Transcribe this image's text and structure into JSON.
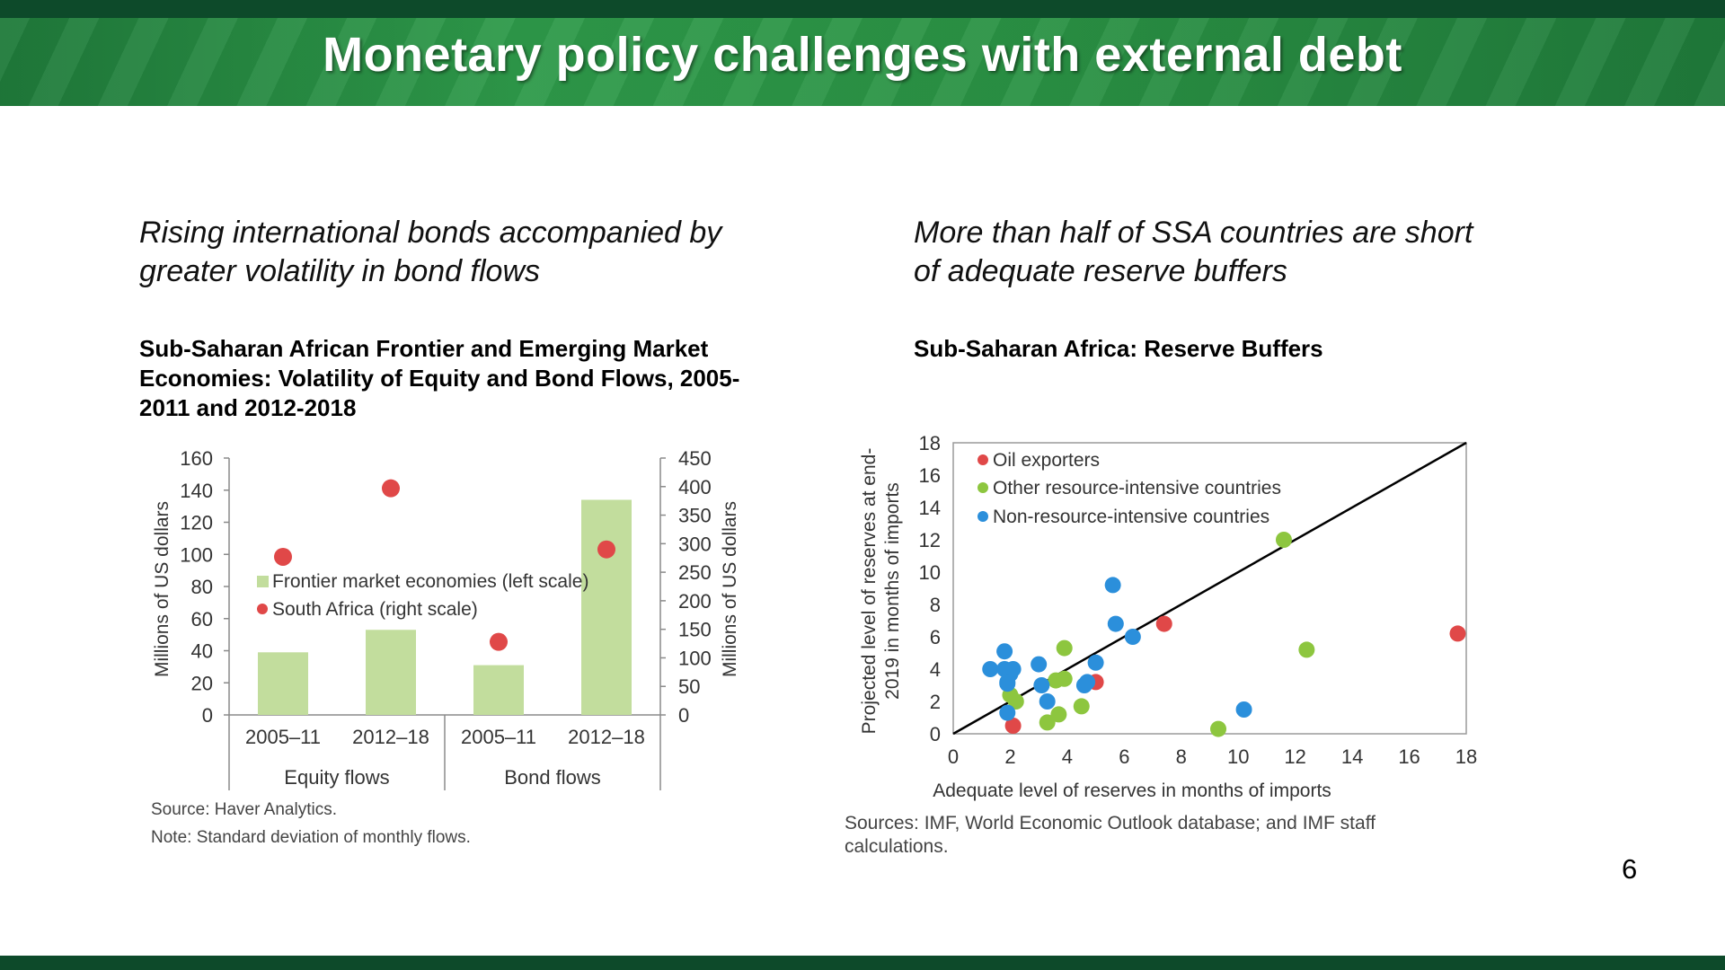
{
  "header": {
    "title": "Monetary policy challenges with external debt"
  },
  "left": {
    "subtitle_line1": "Rising international bonds accompanied by",
    "subtitle_line2": "greater volatility in bond flows",
    "chart_title_line1": "Sub-Saharan African Frontier and Emerging Market",
    "chart_title_line2": "Economies: Volatility of Equity and Bond Flows, 2005-",
    "chart_title_line3": "2011 and 2012-2018",
    "source": "Source: Haver Analytics.",
    "note": "Note: Standard deviation of monthly flows."
  },
  "right": {
    "subtitle_line1": "More than half of SSA countries are short",
    "subtitle_line2": "of adequate reserve buffers",
    "chart_title": "Sub-Saharan Africa: Reserve Buffers",
    "source_line1": "Sources: IMF, World Economic Outlook database; and IMF staff",
    "source_line2": "calculations."
  },
  "page_number": "6",
  "chart_data": [
    {
      "type": "bar",
      "categories": [
        "2005–11",
        "2012–18",
        "2005–11",
        "2012–18"
      ],
      "groups": [
        "Equity flows",
        "Bond flows"
      ],
      "series": [
        {
          "name": "Frontier market economies (left scale)",
          "kind": "bar",
          "axis": "left",
          "color": "#c2dd9d",
          "values": [
            39,
            53,
            31,
            134
          ]
        },
        {
          "name": "South Africa (right scale)",
          "kind": "dot",
          "axis": "right",
          "color": "#e04848",
          "values": [
            277,
            397,
            128,
            290
          ]
        }
      ],
      "ylabel": "Millions of US dollars",
      "y2label": "Millions of US dollars",
      "ylim": [
        0,
        160
      ],
      "y2lim": [
        0,
        450
      ],
      "yticks": [
        "0",
        "20",
        "40",
        "60",
        "80",
        "100",
        "120",
        "140",
        "160"
      ],
      "y2ticks": [
        "0",
        "50",
        "100",
        "150",
        "200",
        "250",
        "300",
        "350",
        "400",
        "450"
      ],
      "legend_position": "middle-left"
    },
    {
      "type": "scatter",
      "xlabel": "Adequate level of reserves in months of imports",
      "ylabel_line1": "Projected level of reserves at end-",
      "ylabel_line2": "2019 in months of imports",
      "xlim": [
        0,
        18
      ],
      "ylim": [
        0,
        18
      ],
      "xticks": [
        "0",
        "2",
        "4",
        "6",
        "8",
        "10",
        "12",
        "14",
        "16",
        "18"
      ],
      "yticks": [
        "0",
        "2",
        "4",
        "6",
        "8",
        "10",
        "12",
        "14",
        "16",
        "18"
      ],
      "reference_line": "45-degree",
      "legend_position": "top-left",
      "series": [
        {
          "name": "Oil exporters",
          "color": "#e04848",
          "x": [
            2.1,
            5.0,
            7.4,
            17.7
          ],
          "y": [
            0.5,
            3.2,
            6.8,
            6.2
          ]
        },
        {
          "name": "Other resource-intensive countries",
          "color": "#8dc63f",
          "x": [
            2.0,
            2.2,
            3.3,
            3.6,
            3.9,
            3.7,
            3.9,
            4.5,
            9.3,
            11.6,
            12.4
          ],
          "y": [
            2.4,
            2.0,
            0.7,
            3.3,
            3.4,
            1.2,
            5.3,
            1.7,
            0.3,
            12.0,
            5.2
          ]
        },
        {
          "name": "Non-resource-intensive countries",
          "color": "#2b8fdb",
          "x": [
            1.3,
            1.8,
            1.8,
            1.9,
            2.0,
            2.1,
            1.9,
            1.9,
            3.0,
            3.1,
            3.3,
            4.6,
            4.7,
            5.0,
            5.6,
            5.7,
            6.3,
            10.2
          ],
          "y": [
            4.0,
            5.1,
            4.0,
            3.1,
            3.7,
            4.0,
            1.3,
            3.2,
            4.3,
            3.0,
            2.0,
            3.0,
            3.2,
            4.4,
            9.2,
            6.8,
            6.0,
            1.5
          ]
        }
      ]
    }
  ]
}
